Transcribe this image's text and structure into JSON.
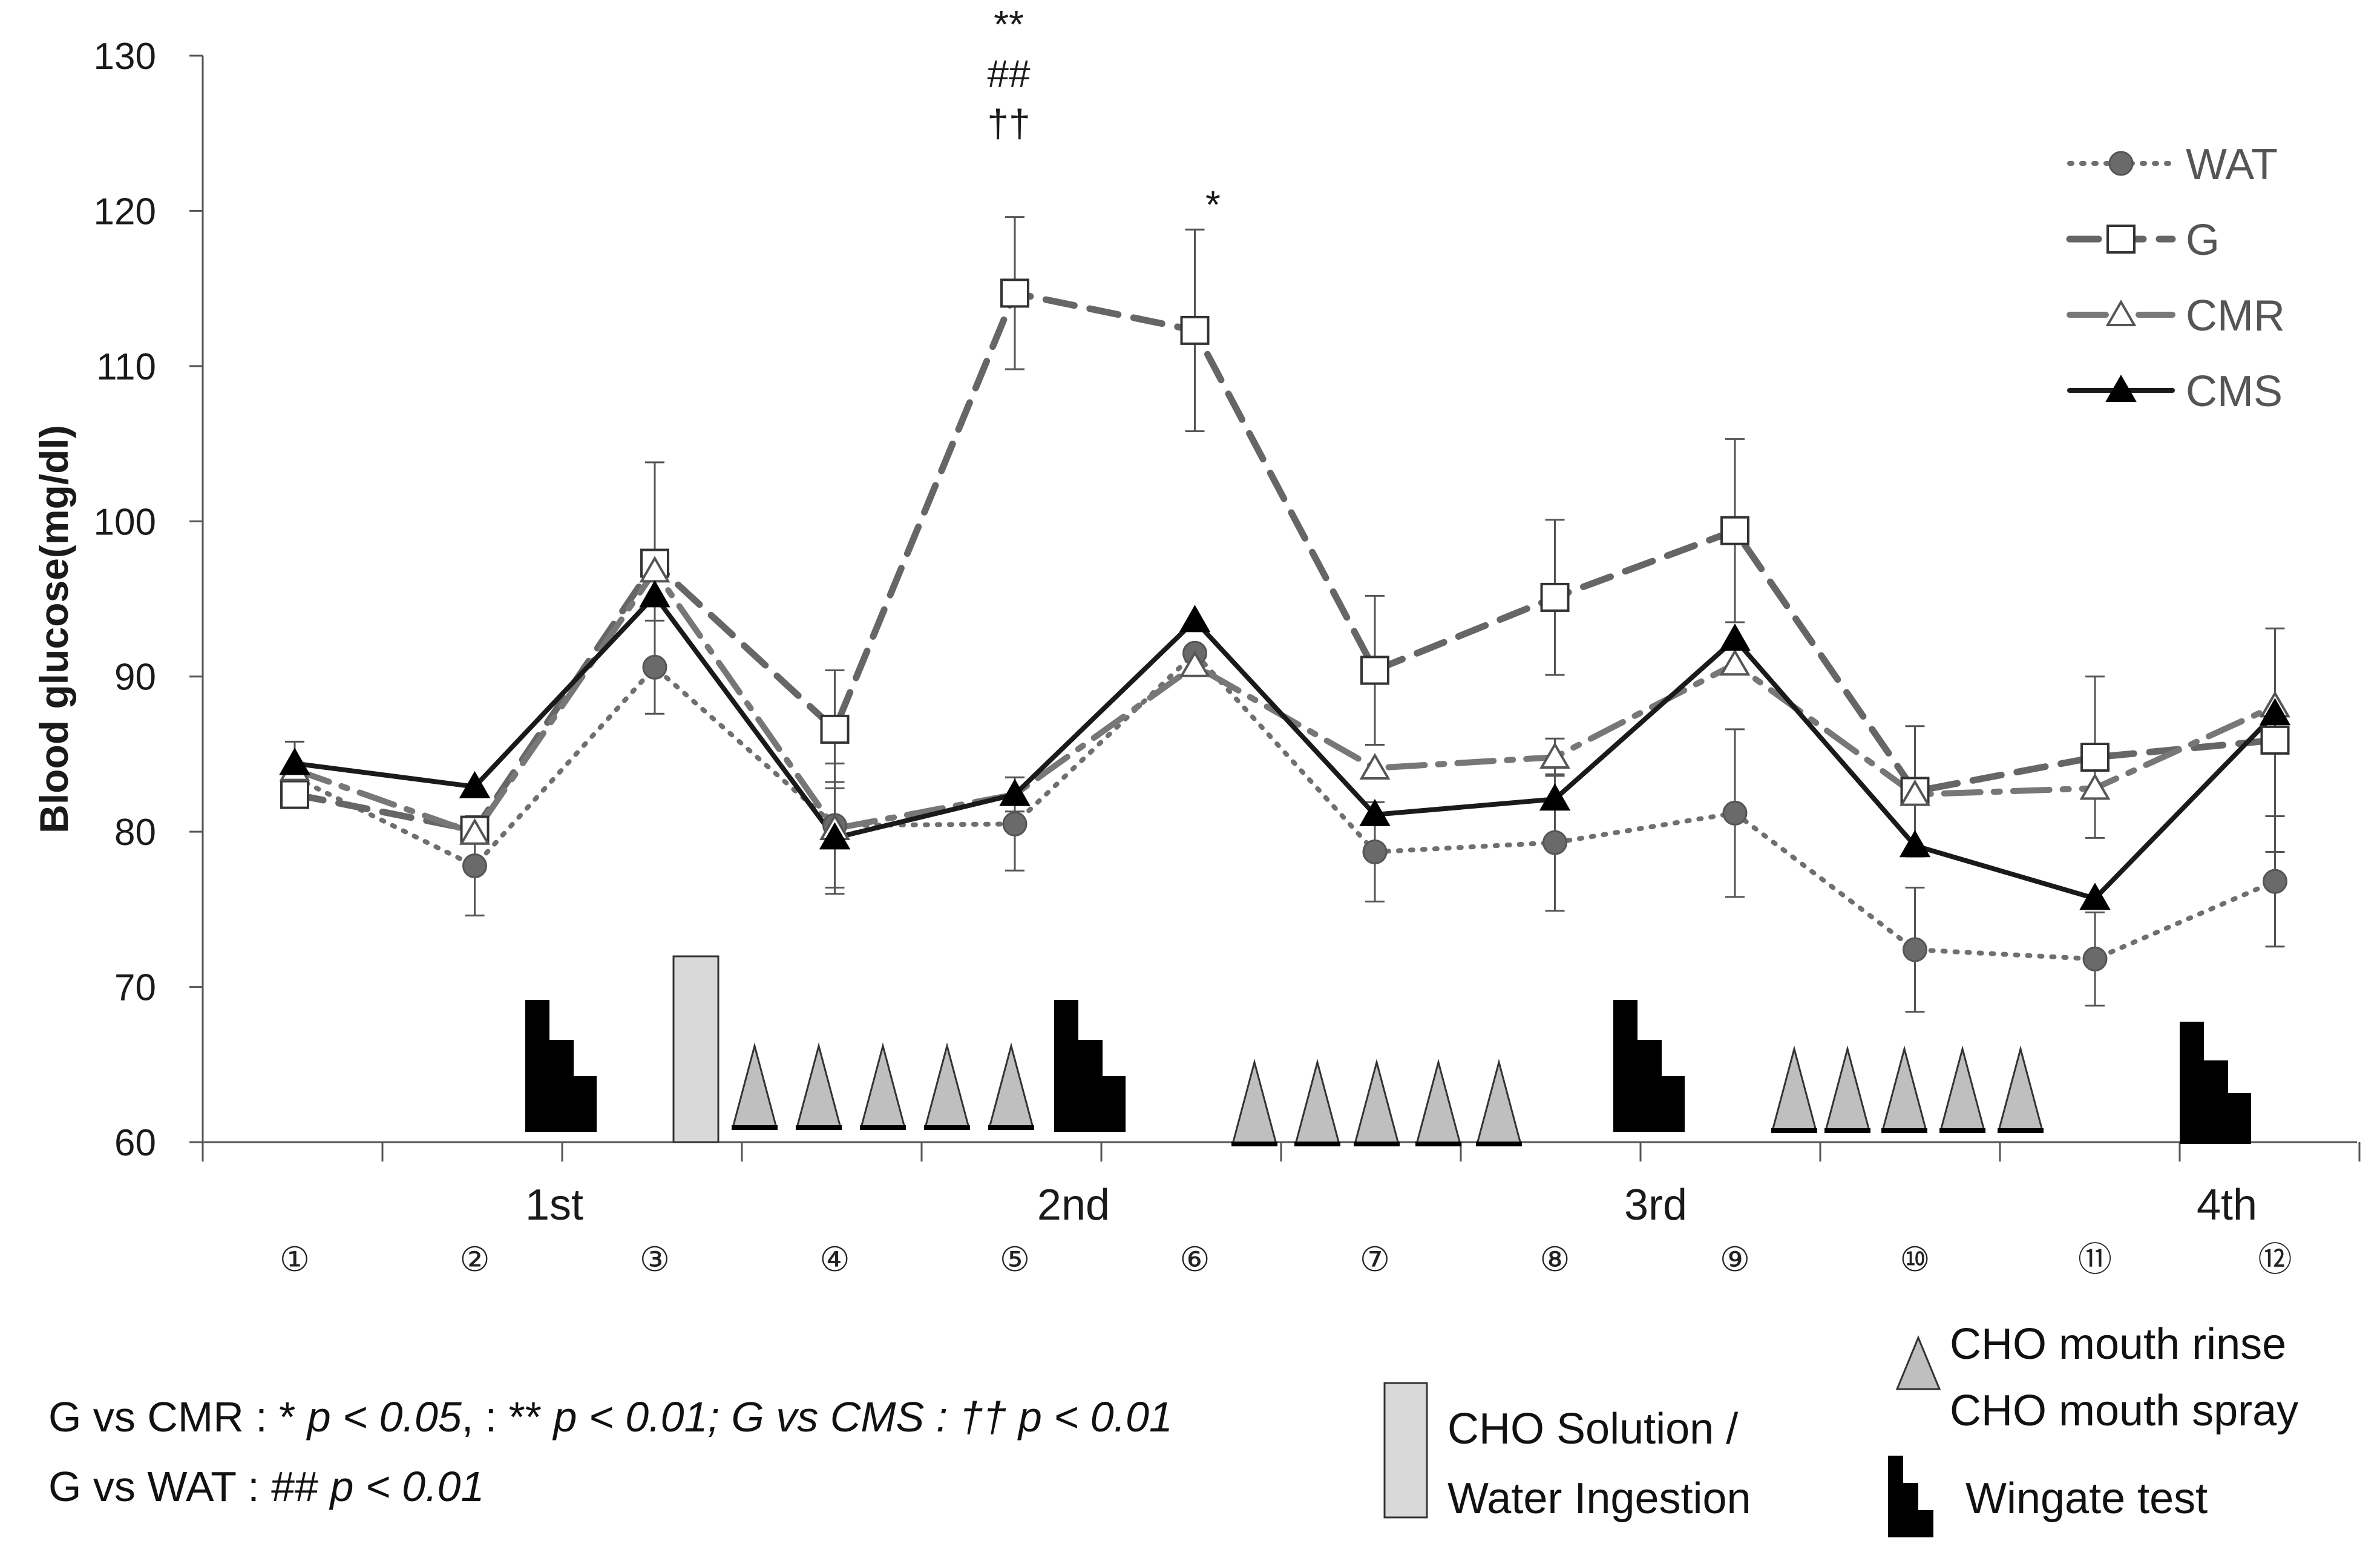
{
  "chart_data": {
    "type": "line",
    "ylabel": "Blood glucose(mg/dl)",
    "ylim": [
      60,
      130
    ],
    "yticks": [
      "60",
      "70",
      "80",
      "90",
      "100",
      "110",
      "120",
      "130"
    ],
    "timepoints": [
      "①",
      "②",
      "③",
      "④",
      "⑤",
      "⑥",
      "⑦",
      "⑧",
      "⑨",
      "⑩",
      "⑪",
      "⑫"
    ],
    "wingate_labels": [
      "1st",
      "2nd",
      "3rd",
      "4th"
    ],
    "series": [
      {
        "name": "WAT",
        "color": "#6f6f6f",
        "marker": "circle",
        "line": "dotted",
        "values": [
          83.5,
          77.8,
          90.6,
          80.4,
          80.5,
          91.5,
          78.7,
          79.3,
          81.2,
          72.4,
          71.8,
          76.8
        ],
        "err": [
          0,
          3.2,
          3.0,
          4.0,
          3.0,
          0,
          3.2,
          4.4,
          5.4,
          4.0,
          3.0,
          4.2
        ]
      },
      {
        "name": "G",
        "color": "#666666",
        "marker": "square-open",
        "line": "dashed",
        "values": [
          82.4,
          80.1,
          97.3,
          86.6,
          114.7,
          112.3,
          90.4,
          95.1,
          99.4,
          82.6,
          84.8,
          85.9
        ],
        "err": [
          0,
          0,
          6.5,
          3.8,
          4.9,
          6.5,
          4.8,
          5.0,
          5.9,
          4.2,
          5.2,
          7.2
        ]
      },
      {
        "name": "CMR",
        "color": "#777777",
        "marker": "triangle-open",
        "line": "dashdot",
        "values": [
          84.0,
          79.9,
          96.8,
          80.2,
          82.4,
          90.7,
          84.1,
          84.8,
          90.8,
          82.4,
          82.8,
          88.1
        ],
        "err": [
          1.8,
          0,
          0,
          0,
          0,
          0,
          0,
          1.2,
          0,
          0,
          0,
          0
        ]
      },
      {
        "name": "CMS",
        "color": "#1a1a1a",
        "marker": "triangle-filled",
        "line": "solid",
        "values": [
          84.4,
          82.9,
          95.2,
          79.6,
          82.4,
          93.6,
          81.1,
          82.1,
          92.4,
          79.1,
          75.7,
          87.6
        ],
        "err": [
          0,
          0,
          0,
          3.6,
          1.1,
          0,
          0,
          0,
          0,
          0,
          0,
          0
        ]
      }
    ],
    "significance": [
      {
        "timepoint": "⑤",
        "marks": [
          "**",
          "##",
          "††"
        ]
      },
      {
        "timepoint": "⑥",
        "marks": [
          "*"
        ]
      }
    ],
    "legend": {
      "position": "top-right",
      "entries": [
        "WAT",
        "G",
        "CMR",
        "CMS"
      ]
    },
    "footnote": {
      "line1_segments": [
        "G vs CMR : * ",
        "p < 0.05",
        ", : ** ",
        "p < 0.01",
        "; ",
        "G vs",
        " CMS : †† ",
        "p < 0.01"
      ],
      "line2_segments": [
        "G vs WAT : ## ",
        "p < 0.01"
      ]
    },
    "key": {
      "ingestion": [
        "CHO Solution /",
        "Water Ingestion"
      ],
      "rinse": [
        "CHO mouth rinse",
        "CHO mouth spray"
      ],
      "wingate": "Wingate test"
    },
    "colors": {
      "ingestion_fill": "#d9d9d9",
      "triangle_fill": "#bfbfbf",
      "wingate_fill": "#000000"
    }
  }
}
